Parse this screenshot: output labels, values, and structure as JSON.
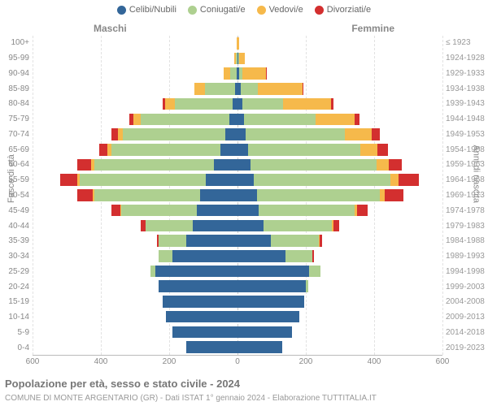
{
  "chart": {
    "type": "population-pyramid",
    "title": "Popolazione per età, sesso e stato civile - 2024",
    "subtitle": "COMUNE DI MONTE ARGENTARIO (GR) - Dati ISTAT 1° gennaio 2024 - Elaborazione TUTTITALIA.IT",
    "left_header": "Maschi",
    "right_header": "Femmine",
    "y_label_left": "Fasce di età",
    "y_label_right": "Anni di nascita",
    "x_max": 600,
    "x_ticks": [
      600,
      400,
      200,
      0,
      200,
      400,
      600
    ],
    "background_color": "#ffffff",
    "grid_color": "#e2e2e2",
    "axis_color": "#bbbbbb",
    "legend": [
      {
        "label": "Celibi/Nubili",
        "color": "#336699"
      },
      {
        "label": "Coniugati/e",
        "color": "#aed090"
      },
      {
        "label": "Vedovi/e",
        "color": "#f6b94b"
      },
      {
        "label": "Divorziati/e",
        "color": "#d32f2f"
      }
    ],
    "colors": {
      "single": "#336699",
      "married": "#aed090",
      "widowed": "#f6b94b",
      "divorced": "#d32f2f"
    },
    "rows": [
      {
        "age": "100+",
        "birth": "≤ 1923",
        "m": {
          "single": 0,
          "married": 0,
          "widowed": 2,
          "divorced": 0
        },
        "f": {
          "single": 0,
          "married": 0,
          "widowed": 4,
          "divorced": 0
        }
      },
      {
        "age": "95-99",
        "birth": "1924-1928",
        "m": {
          "single": 0,
          "married": 4,
          "widowed": 6,
          "divorced": 0
        },
        "f": {
          "single": 2,
          "married": 2,
          "widowed": 18,
          "divorced": 0
        }
      },
      {
        "age": "90-94",
        "birth": "1929-1933",
        "m": {
          "single": 2,
          "married": 20,
          "widowed": 18,
          "divorced": 0
        },
        "f": {
          "single": 4,
          "married": 10,
          "widowed": 70,
          "divorced": 2
        }
      },
      {
        "age": "85-89",
        "birth": "1934-1938",
        "m": {
          "single": 6,
          "married": 90,
          "widowed": 30,
          "divorced": 0
        },
        "f": {
          "single": 10,
          "married": 50,
          "widowed": 130,
          "divorced": 4
        }
      },
      {
        "age": "80-84",
        "birth": "1939-1943",
        "m": {
          "single": 14,
          "married": 170,
          "widowed": 28,
          "divorced": 6
        },
        "f": {
          "single": 14,
          "married": 120,
          "widowed": 140,
          "divorced": 8
        }
      },
      {
        "age": "75-79",
        "birth": "1944-1948",
        "m": {
          "single": 24,
          "married": 260,
          "widowed": 22,
          "divorced": 10
        },
        "f": {
          "single": 18,
          "married": 210,
          "widowed": 115,
          "divorced": 14
        }
      },
      {
        "age": "70-74",
        "birth": "1949-1953",
        "m": {
          "single": 36,
          "married": 300,
          "widowed": 14,
          "divorced": 18
        },
        "f": {
          "single": 24,
          "married": 290,
          "widowed": 80,
          "divorced": 22
        }
      },
      {
        "age": "65-69",
        "birth": "1954-1958",
        "m": {
          "single": 50,
          "married": 320,
          "widowed": 10,
          "divorced": 26
        },
        "f": {
          "single": 30,
          "married": 330,
          "widowed": 50,
          "divorced": 30
        }
      },
      {
        "age": "60-64",
        "birth": "1959-1963",
        "m": {
          "single": 70,
          "married": 350,
          "widowed": 8,
          "divorced": 42
        },
        "f": {
          "single": 38,
          "married": 370,
          "widowed": 34,
          "divorced": 40
        }
      },
      {
        "age": "55-59",
        "birth": "1964-1968",
        "m": {
          "single": 92,
          "married": 370,
          "widowed": 6,
          "divorced": 52
        },
        "f": {
          "single": 48,
          "married": 400,
          "widowed": 24,
          "divorced": 58
        }
      },
      {
        "age": "50-54",
        "birth": "1969-1973",
        "m": {
          "single": 110,
          "married": 310,
          "widowed": 4,
          "divorced": 46
        },
        "f": {
          "single": 56,
          "married": 360,
          "widowed": 16,
          "divorced": 54
        }
      },
      {
        "age": "45-49",
        "birth": "1974-1978",
        "m": {
          "single": 120,
          "married": 220,
          "widowed": 2,
          "divorced": 28
        },
        "f": {
          "single": 62,
          "married": 280,
          "widowed": 8,
          "divorced": 32
        }
      },
      {
        "age": "40-44",
        "birth": "1979-1983",
        "m": {
          "single": 130,
          "married": 140,
          "widowed": 0,
          "divorced": 14
        },
        "f": {
          "single": 76,
          "married": 200,
          "widowed": 4,
          "divorced": 18
        }
      },
      {
        "age": "35-39",
        "birth": "1984-1988",
        "m": {
          "single": 150,
          "married": 80,
          "widowed": 0,
          "divorced": 6
        },
        "f": {
          "single": 98,
          "married": 140,
          "widowed": 2,
          "divorced": 8
        }
      },
      {
        "age": "30-34",
        "birth": "1989-1993",
        "m": {
          "single": 190,
          "married": 40,
          "widowed": 0,
          "divorced": 2
        },
        "f": {
          "single": 140,
          "married": 80,
          "widowed": 0,
          "divorced": 4
        }
      },
      {
        "age": "25-29",
        "birth": "1994-1998",
        "m": {
          "single": 240,
          "married": 14,
          "widowed": 0,
          "divorced": 0
        },
        "f": {
          "single": 210,
          "married": 32,
          "widowed": 0,
          "divorced": 0
        }
      },
      {
        "age": "20-24",
        "birth": "1999-2003",
        "m": {
          "single": 230,
          "married": 2,
          "widowed": 0,
          "divorced": 0
        },
        "f": {
          "single": 200,
          "married": 8,
          "widowed": 0,
          "divorced": 0
        }
      },
      {
        "age": "15-19",
        "birth": "2004-2008",
        "m": {
          "single": 220,
          "married": 0,
          "widowed": 0,
          "divorced": 0
        },
        "f": {
          "single": 195,
          "married": 0,
          "widowed": 0,
          "divorced": 0
        }
      },
      {
        "age": "10-14",
        "birth": "2009-2013",
        "m": {
          "single": 210,
          "married": 0,
          "widowed": 0,
          "divorced": 0
        },
        "f": {
          "single": 180,
          "married": 0,
          "widowed": 0,
          "divorced": 0
        }
      },
      {
        "age": "5-9",
        "birth": "2014-2018",
        "m": {
          "single": 190,
          "married": 0,
          "widowed": 0,
          "divorced": 0
        },
        "f": {
          "single": 160,
          "married": 0,
          "widowed": 0,
          "divorced": 0
        }
      },
      {
        "age": "0-4",
        "birth": "2019-2023",
        "m": {
          "single": 150,
          "married": 0,
          "widowed": 0,
          "divorced": 0
        },
        "f": {
          "single": 130,
          "married": 0,
          "widowed": 0,
          "divorced": 0
        }
      }
    ]
  }
}
